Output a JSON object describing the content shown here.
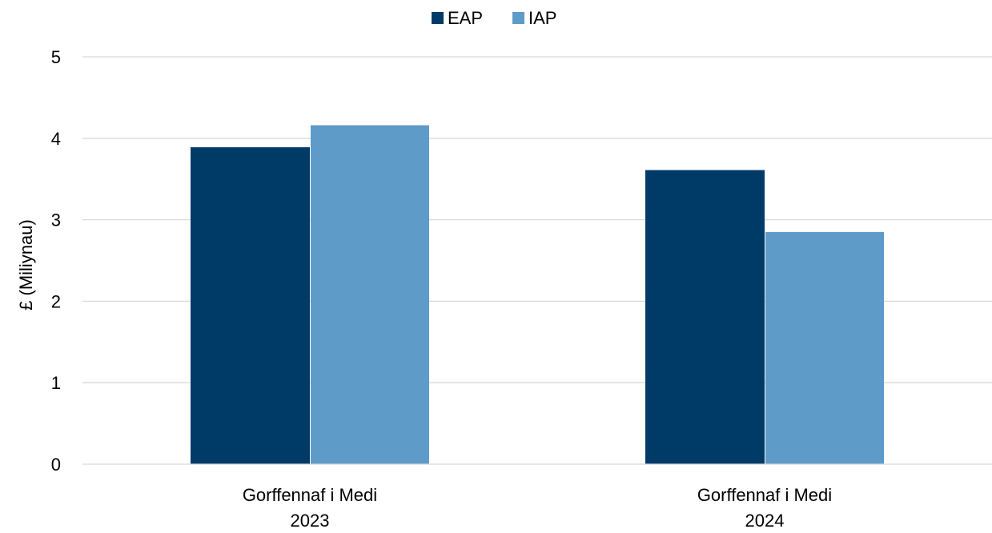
{
  "chart_data": {
    "type": "bar",
    "title": "",
    "xlabel": "",
    "ylabel": "£ (Miliynau)",
    "ylim": [
      0,
      5
    ],
    "yticks": [
      "0",
      "1",
      "2",
      "3",
      "4",
      "5"
    ],
    "grid": true,
    "legend_position": "top-center",
    "categories": [
      [
        "Gorffennaf i Medi",
        "2023"
      ],
      [
        "Gorffennaf i Medi",
        "2024"
      ]
    ],
    "series": [
      {
        "name": "EAP",
        "color": "#003b68",
        "values": [
          3.89,
          3.61
        ]
      },
      {
        "name": "IAP",
        "color": "#5f9bc8",
        "values": [
          4.16,
          2.85
        ]
      }
    ],
    "gridline_color": "#d9d9d9"
  }
}
